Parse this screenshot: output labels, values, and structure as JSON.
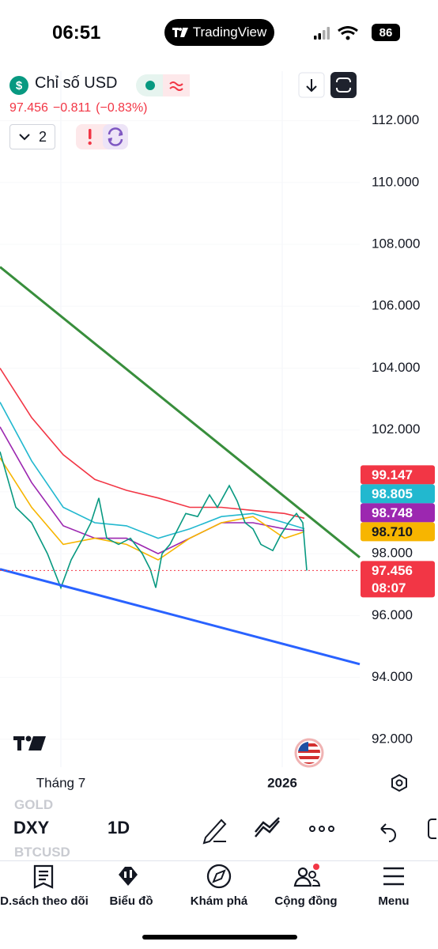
{
  "status_bar": {
    "time": "06:51",
    "brand": "TradingView",
    "battery": "86"
  },
  "header": {
    "symbol": "Chỉ số USD",
    "price": "97.456",
    "change": "−0.811",
    "change_pct": "(−0.83%)",
    "indicator_count": "2"
  },
  "chart_data": {
    "type": "line",
    "x": [
      0,
      4,
      8,
      12,
      15.4,
      18,
      21,
      23,
      25,
      27,
      30,
      33,
      36,
      38,
      39.4,
      41,
      43,
      45,
      47,
      50,
      53,
      55,
      58,
      60,
      62,
      64,
      66,
      69,
      71,
      73,
      75,
      76.6,
      77.6
    ],
    "values": [
      101.3,
      99.5,
      99.0,
      98.0,
      96.9,
      97.8,
      98.5,
      99.0,
      99.8,
      98.5,
      98.3,
      98.5,
      98.0,
      97.5,
      96.9,
      98.0,
      98.3,
      98.8,
      99.3,
      99.2,
      99.9,
      99.5,
      100.2,
      99.7,
      99.0,
      98.8,
      98.3,
      98.1,
      98.6,
      99.0,
      99.3,
      99.0,
      97.456
    ],
    "color": "#089981",
    "xlim": [
      0,
      91
    ],
    "ylim": [
      91.1,
      113.6
    ],
    "yticks": [
      {
        "value": 112,
        "label": "112.000"
      },
      {
        "value": 110,
        "label": "110.000"
      },
      {
        "value": 108,
        "label": "108.000"
      },
      {
        "value": 106,
        "label": "106.000"
      },
      {
        "value": 104,
        "label": "104.000"
      },
      {
        "value": 102,
        "label": "102.000"
      },
      {
        "value": 100,
        "label": "100.000"
      },
      {
        "value": 98,
        "label": "98.000"
      },
      {
        "value": 96,
        "label": "96.000"
      },
      {
        "value": 94,
        "label": "94.000"
      },
      {
        "value": 92,
        "label": "92.000"
      }
    ],
    "xticks": [
      {
        "value": 15.4,
        "label": "Tháng 7"
      },
      {
        "value": 71.4,
        "label": "2026"
      }
    ],
    "moving_averages": [
      {
        "x": [
          0,
          8,
          16,
          24,
          32,
          40,
          48,
          56,
          64,
          72,
          77
        ],
        "values": [
          104.0,
          102.4,
          101.2,
          100.4,
          100.05,
          99.8,
          99.5,
          99.5,
          99.4,
          99.3,
          99.147
        ],
        "color": "#f23645"
      },
      {
        "x": [
          0,
          8,
          16,
          24,
          32,
          40,
          48,
          56,
          64,
          72,
          77
        ],
        "values": [
          102.9,
          101.0,
          99.5,
          99.0,
          98.9,
          98.5,
          98.8,
          99.2,
          99.3,
          99.0,
          98.805
        ],
        "color": "#22b8cf"
      },
      {
        "x": [
          0,
          8,
          16,
          24,
          32,
          40,
          48,
          56,
          64,
          72,
          77
        ],
        "values": [
          102.1,
          100.3,
          98.9,
          98.5,
          98.5,
          98.0,
          98.5,
          99.0,
          99.0,
          98.8,
          98.748
        ],
        "color": "#9c27b0"
      },
      {
        "x": [
          0,
          8,
          16,
          24,
          32,
          40,
          48,
          56,
          64,
          72,
          77
        ],
        "values": [
          101.1,
          99.5,
          98.3,
          98.5,
          98.3,
          97.8,
          98.5,
          99.0,
          99.2,
          98.5,
          98.71
        ],
        "color": "#f7b500"
      }
    ],
    "trend_lines": [
      {
        "x": [
          0,
          91
        ],
        "values": [
          107.27,
          97.88
        ],
        "color": "#388e3c"
      },
      {
        "x": [
          0,
          91
        ],
        "values": [
          97.5,
          94.43
        ],
        "color": "#2962ff"
      }
    ],
    "price_labels": [
      {
        "value": 99.147,
        "label": "99.147",
        "color": "#f23645",
        "text_color": "#ffffff"
      },
      {
        "value": 98.805,
        "label": "98.805",
        "color": "#22b8cf",
        "text_color": "#ffffff"
      },
      {
        "value": 98.748,
        "label": "98.748",
        "color": "#9c27b0",
        "text_color": "#ffffff"
      },
      {
        "value": 98.71,
        "label": "98.710",
        "color": "#f7b500",
        "text_color": "#131722"
      },
      {
        "value": 97.456,
        "label": "97.456",
        "color": "#f23645",
        "text_color": "#ffffff"
      }
    ],
    "countdown": "08:07"
  },
  "watchlist": {
    "prev": "GOLD",
    "symbol": "DXY",
    "next": "BTCUSD",
    "timeframe": "1D"
  },
  "nav": [
    "D.sách theo dõi",
    "Biểu đồ",
    "Khám phá",
    "Cộng đồng",
    "Menu"
  ]
}
